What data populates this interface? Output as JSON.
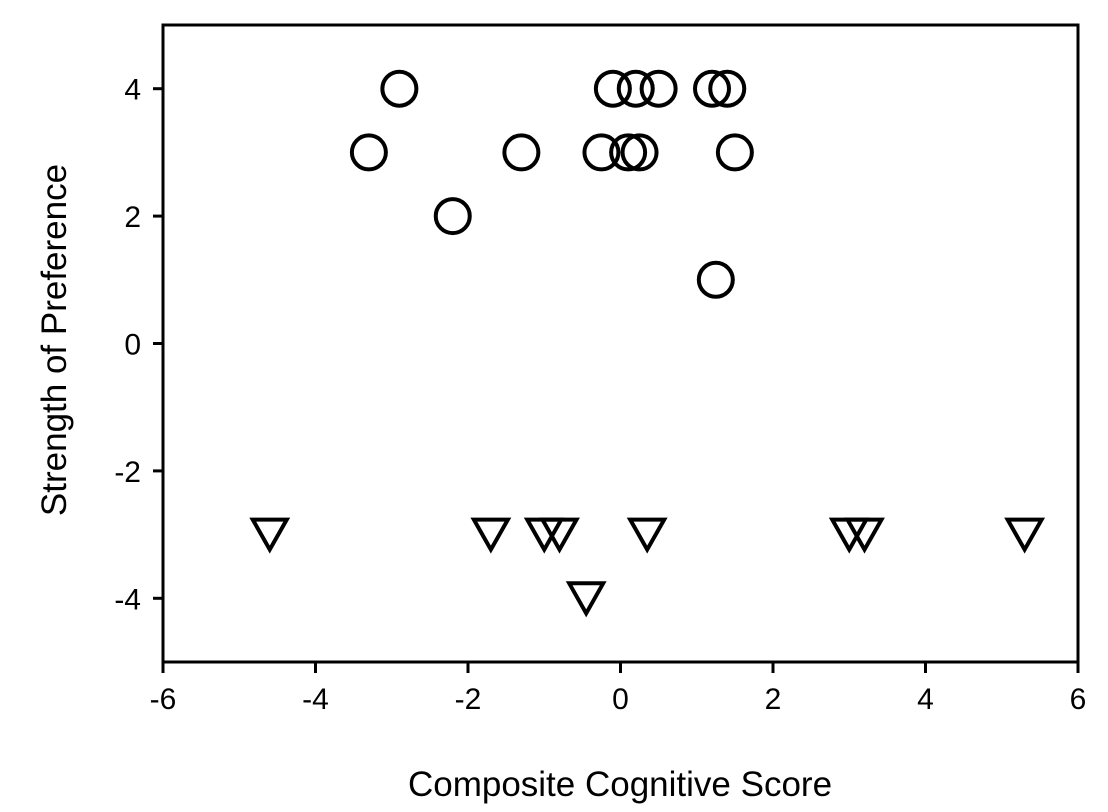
{
  "chart_data": {
    "type": "scatter",
    "xlabel": "Composite Cognitive Score",
    "ylabel": "Strength of Preference",
    "xlim": [
      -6,
      6
    ],
    "ylim": [
      -5,
      5
    ],
    "xticks": [
      -6,
      -4,
      -2,
      0,
      2,
      4,
      6
    ],
    "yticks": [
      -4,
      -2,
      0,
      2,
      4
    ],
    "x_tick_labels": [
      "-6",
      "-4",
      "-2",
      "0",
      "2",
      "4",
      "6"
    ],
    "y_tick_labels": [
      "-4",
      "-2",
      "0",
      "2",
      "4"
    ],
    "grid": false,
    "legend": "none",
    "series": [
      {
        "marker": "circle",
        "color": "#000000",
        "points": [
          {
            "x": -2.9,
            "y": 4
          },
          {
            "x": -3.3,
            "y": 3
          },
          {
            "x": -2.2,
            "y": 2
          },
          {
            "x": -1.3,
            "y": 3
          },
          {
            "x": -0.1,
            "y": 4
          },
          {
            "x": 0.2,
            "y": 4
          },
          {
            "x": 0.5,
            "y": 4
          },
          {
            "x": 1.2,
            "y": 4
          },
          {
            "x": 1.4,
            "y": 4
          },
          {
            "x": -0.25,
            "y": 3
          },
          {
            "x": 0.1,
            "y": 3
          },
          {
            "x": 0.25,
            "y": 3
          },
          {
            "x": 1.5,
            "y": 3
          },
          {
            "x": 1.25,
            "y": 1
          }
        ]
      },
      {
        "marker": "triangle-down",
        "color": "#000000",
        "points": [
          {
            "x": -4.6,
            "y": -3
          },
          {
            "x": -1.7,
            "y": -3
          },
          {
            "x": -1.0,
            "y": -3
          },
          {
            "x": -0.8,
            "y": -3
          },
          {
            "x": 0.35,
            "y": -3
          },
          {
            "x": 3.0,
            "y": -3
          },
          {
            "x": 3.2,
            "y": -3
          },
          {
            "x": 5.3,
            "y": -3
          },
          {
            "x": -0.45,
            "y": -4
          }
        ]
      }
    ]
  }
}
